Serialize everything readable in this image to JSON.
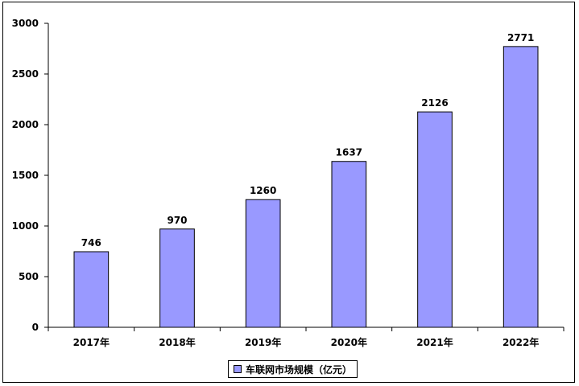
{
  "chart_data": {
    "type": "bar",
    "categories": [
      "2017年",
      "2018年",
      "2019年",
      "2020年",
      "2021年",
      "2022年"
    ],
    "series": [
      {
        "name": "车联网市场规模（亿元）",
        "values": [
          746,
          970,
          1260,
          1637,
          2126,
          2771
        ]
      }
    ],
    "ylim": [
      0,
      3000
    ],
    "yticks": [
      0,
      500,
      1000,
      1500,
      2000,
      2500,
      3000
    ],
    "title": "",
    "xlabel": "",
    "ylabel": "",
    "grid": false,
    "legend_position": "bottom",
    "bar_color": "#9999ff",
    "bar_edge_color": "#000000"
  }
}
